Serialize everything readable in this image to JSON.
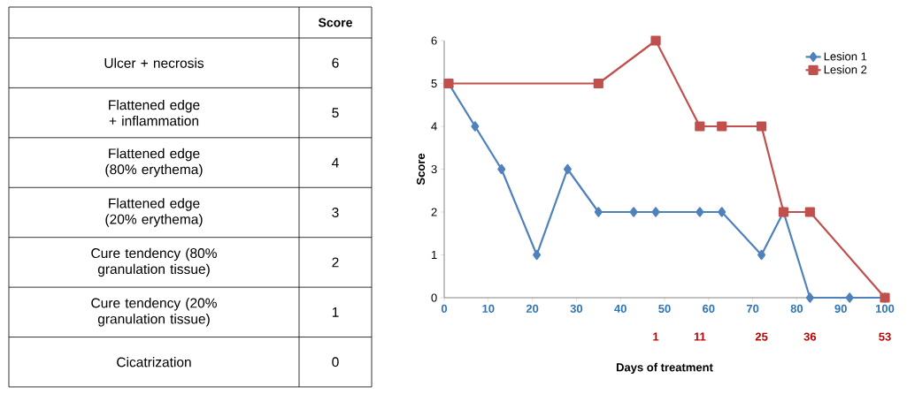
{
  "chart_data": [
    {
      "type": "other",
      "ylabel": "Score",
      "categories": [
        "Ulcer + necrosis",
        "Flattened edge + inflammation",
        "Flattened edge (80% erythema)",
        "Flattened edge (20% erythema)",
        "Cure tendency (80% granulation tissue)",
        "Cure tendency (20% granulation tissue)",
        "Cicatrization"
      ],
      "values": [
        6,
        5,
        4,
        3,
        2,
        1,
        0
      ],
      "data_labels": true
    },
    {
      "type": "line",
      "xlabel": "Days of treatment",
      "ylabel": "Score",
      "xlim": [
        0,
        100
      ],
      "ylim": [
        0,
        6
      ],
      "xticks": [
        0,
        10,
        20,
        30,
        40,
        50,
        60,
        70,
        80,
        90,
        100
      ],
      "yticks": [
        0,
        1,
        2,
        3,
        4,
        5,
        6
      ],
      "legend": "top right",
      "line_style": "solid",
      "series": [
        {
          "name": "Lesion 1",
          "color": "#4f81bd",
          "marker": "diamond",
          "x": [
            1,
            7,
            13,
            21,
            28,
            35,
            43,
            48,
            58,
            63,
            72,
            77,
            83,
            92,
            100
          ],
          "values": [
            5,
            4,
            3,
            1,
            3,
            2,
            2,
            2,
            2,
            2,
            1,
            2,
            0,
            0,
            0
          ]
        },
        {
          "name": "Lesion 2",
          "color": "#c0504d",
          "marker": "square",
          "x": [
            1,
            35,
            48,
            58,
            63,
            72,
            77,
            83,
            100
          ],
          "values": [
            5,
            5,
            6,
            4,
            4,
            4,
            2,
            2,
            0
          ]
        }
      ],
      "x2lim": [
        -47,
        53
      ],
      "x2ticks": [
        1,
        11,
        25,
        36,
        53
      ]
    }
  ]
}
